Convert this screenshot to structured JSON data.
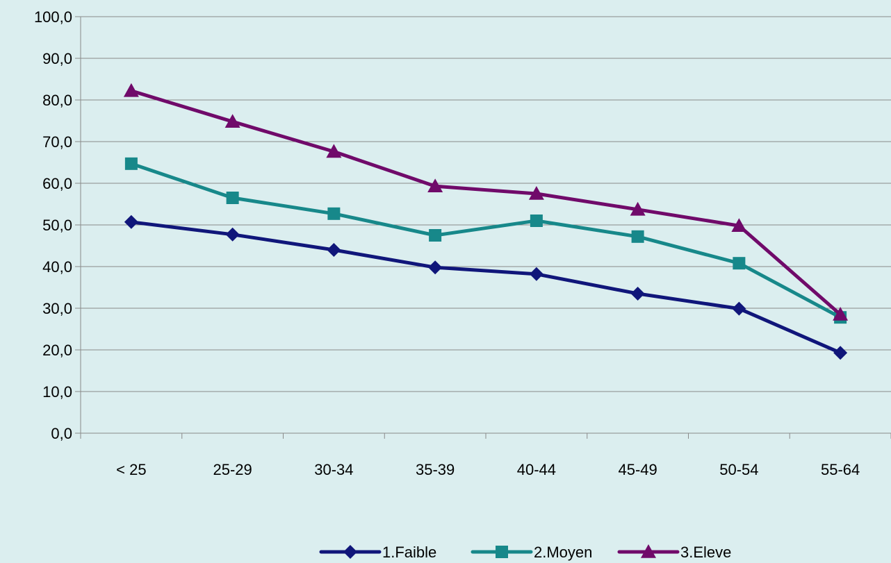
{
  "chart_data": {
    "type": "line",
    "categories": [
      "< 25",
      "25-29",
      "30-34",
      "35-39",
      "40-44",
      "45-49",
      "50-54",
      "55-64"
    ],
    "ylim": [
      0,
      100
    ],
    "ytick_step": 10,
    "ytick_labels": [
      "0,0",
      "10,0",
      "20,0",
      "30,0",
      "40,0",
      "50,0",
      "60,0",
      "70,0",
      "80,0",
      "90,0",
      "100,0"
    ],
    "grid": "horizontal",
    "legend_position": "bottom",
    "series": [
      {
        "name": "1.Faible",
        "marker": "diamond",
        "color": "#10167a",
        "values": [
          50.7,
          47.7,
          44.0,
          39.8,
          38.2,
          33.5,
          29.9,
          19.3
        ]
      },
      {
        "name": "2.Moyen",
        "marker": "square",
        "color": "#17888a",
        "values": [
          64.7,
          56.5,
          52.7,
          47.5,
          51.0,
          47.2,
          40.8,
          27.8
        ]
      },
      {
        "name": "3.Eleve",
        "marker": "triangle",
        "color": "#700a6a",
        "values": [
          82.2,
          74.8,
          67.6,
          59.3,
          57.5,
          53.7,
          49.8,
          28.5
        ]
      }
    ]
  }
}
